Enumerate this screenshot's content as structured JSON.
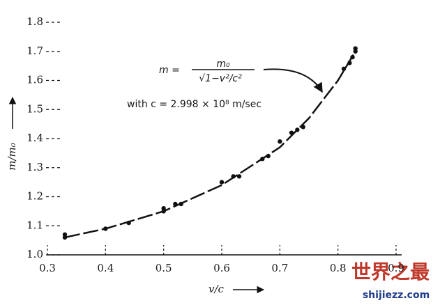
{
  "chart_data": {
    "type": "scatter",
    "xlim": [
      0.3,
      0.9
    ],
    "xticks": [
      0.3,
      0.4,
      0.5,
      0.6,
      0.7,
      0.8,
      0.9
    ],
    "ylim": [
      1,
      1.8
    ],
    "yticks": [
      {
        "value": 1,
        "label": "1.0"
      },
      1.1,
      1.2,
      1.3,
      1.4,
      1.5,
      1.6,
      1.7,
      1.8
    ],
    "x_label": "v/c",
    "y_label": "m/m₀",
    "color": "#111111",
    "points": {
      "x": [
        0.33,
        0.33,
        0.4,
        0.44,
        0.5,
        0.5,
        0.52,
        0.53,
        0.6,
        0.62,
        0.63,
        0.67,
        0.68,
        0.7,
        0.72,
        0.73,
        0.74,
        0.81,
        0.82,
        0.825,
        0.83,
        0.83
      ],
      "y": [
        1.07,
        1.06,
        1.09,
        1.11,
        1.15,
        1.16,
        1.175,
        1.175,
        1.25,
        1.27,
        1.27,
        1.33,
        1.34,
        1.39,
        1.42,
        1.43,
        1.44,
        1.64,
        1.66,
        1.68,
        1.7,
        1.71
      ]
    },
    "curve": {
      "x": [
        0.33,
        0.4,
        0.5,
        0.6,
        0.7,
        0.75,
        0.8,
        0.83
      ],
      "y": [
        1.06,
        1.09,
        1.15,
        1.24,
        1.37,
        1.47,
        1.6,
        1.7
      ]
    },
    "annotation": {
      "lhs": "m =",
      "numerator": "m₀",
      "denominator": "√1−v²/c²",
      "note": "with c = 2.998 × 10⁸ m/sec"
    },
    "watermark": {
      "title": "世界之最",
      "site": "shijiezz.com"
    }
  }
}
